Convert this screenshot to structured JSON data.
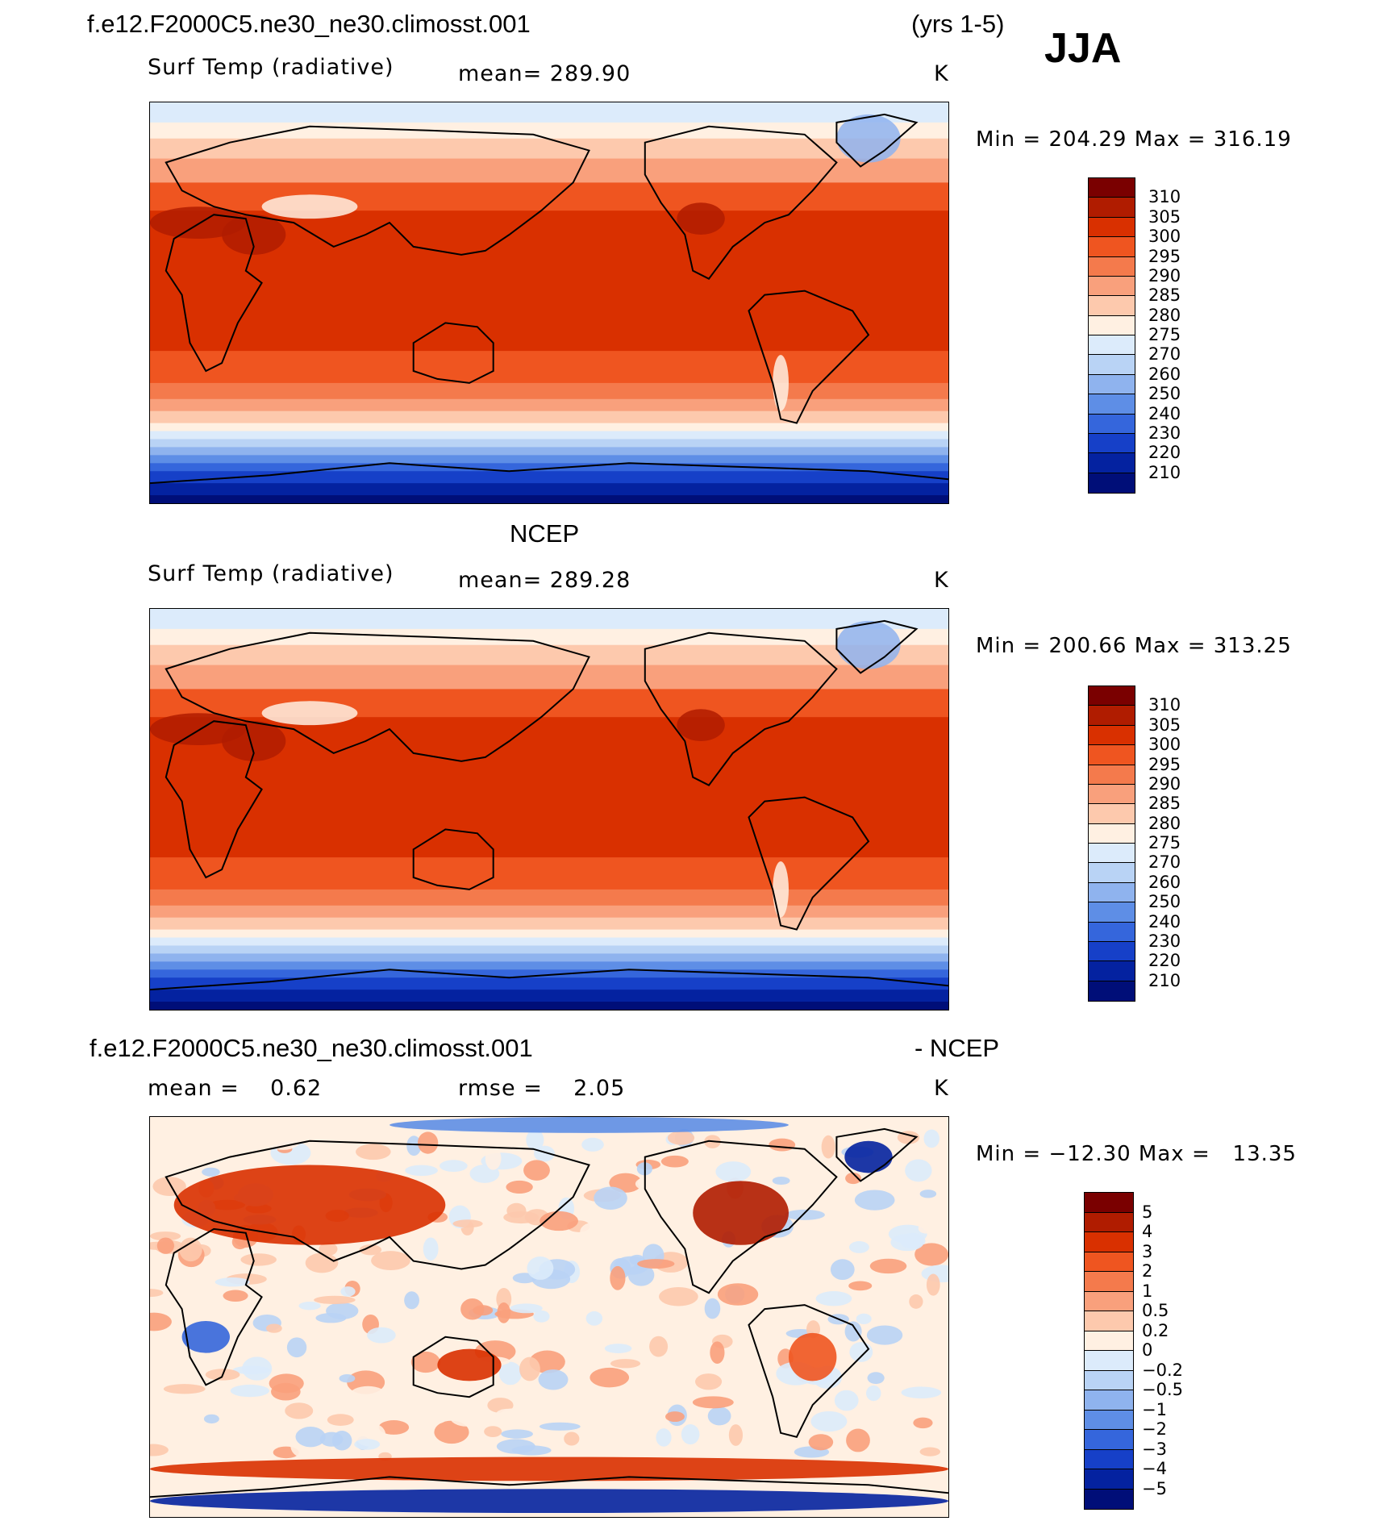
{
  "header": {
    "case_title": "f.e12.F2000C5.ne30_ne30.climosst.001",
    "years": "(yrs 1-5)",
    "season": "JJA"
  },
  "panels": [
    {
      "id": "model",
      "variable": "Surf Temp (radiative)",
      "mean_text": "mean= 289.90",
      "units": "K",
      "minmax": "Min = 204.29 Max = 316.19",
      "field": "absolute"
    },
    {
      "id": "obs",
      "title": "NCEP",
      "variable": "Surf Temp (radiative)",
      "mean_text": "mean= 289.28",
      "units": "K",
      "minmax": "Min = 200.66 Max = 313.25",
      "field": "absolute"
    },
    {
      "id": "diff",
      "title_left": "f.e12.F2000C5.ne30_ne30.climosst.001",
      "title_right": "- NCEP",
      "mean_text": "mean =    0.62",
      "rmse_text": "rmse =    2.05",
      "units": "K",
      "minmax": "Min = −12.30 Max =   13.35",
      "field": "difference"
    }
  ],
  "colorbars": {
    "absolute": {
      "labels": [
        "310",
        "305",
        "300",
        "295",
        "290",
        "285",
        "280",
        "275",
        "270",
        "260",
        "250",
        "240",
        "230",
        "220",
        "210"
      ],
      "colors": [
        "#7a0000",
        "#b01c00",
        "#d93000",
        "#ef5520",
        "#f47a4c",
        "#f9a07c",
        "#fdc9ad",
        "#fff0e2",
        "#dcebfb",
        "#b9d3f5",
        "#8fb3ee",
        "#5e8ee6",
        "#3566dc",
        "#1640c8",
        "#0422a0",
        "#000e78"
      ]
    },
    "difference": {
      "labels": [
        "5",
        "4",
        "3",
        "2",
        "1",
        "0.5",
        "0.2",
        "0",
        "−0.2",
        "−0.5",
        "−1",
        "−2",
        "−3",
        "−4",
        "−5"
      ],
      "colors": [
        "#7a0000",
        "#b01c00",
        "#d93000",
        "#ef5520",
        "#f47a4c",
        "#f9a07c",
        "#fdc9ad",
        "#fff0e2",
        "#dcebfb",
        "#b9d3f5",
        "#8fb3ee",
        "#5e8ee6",
        "#3566dc",
        "#1640c8",
        "#0422a0",
        "#000e78"
      ]
    }
  }
}
